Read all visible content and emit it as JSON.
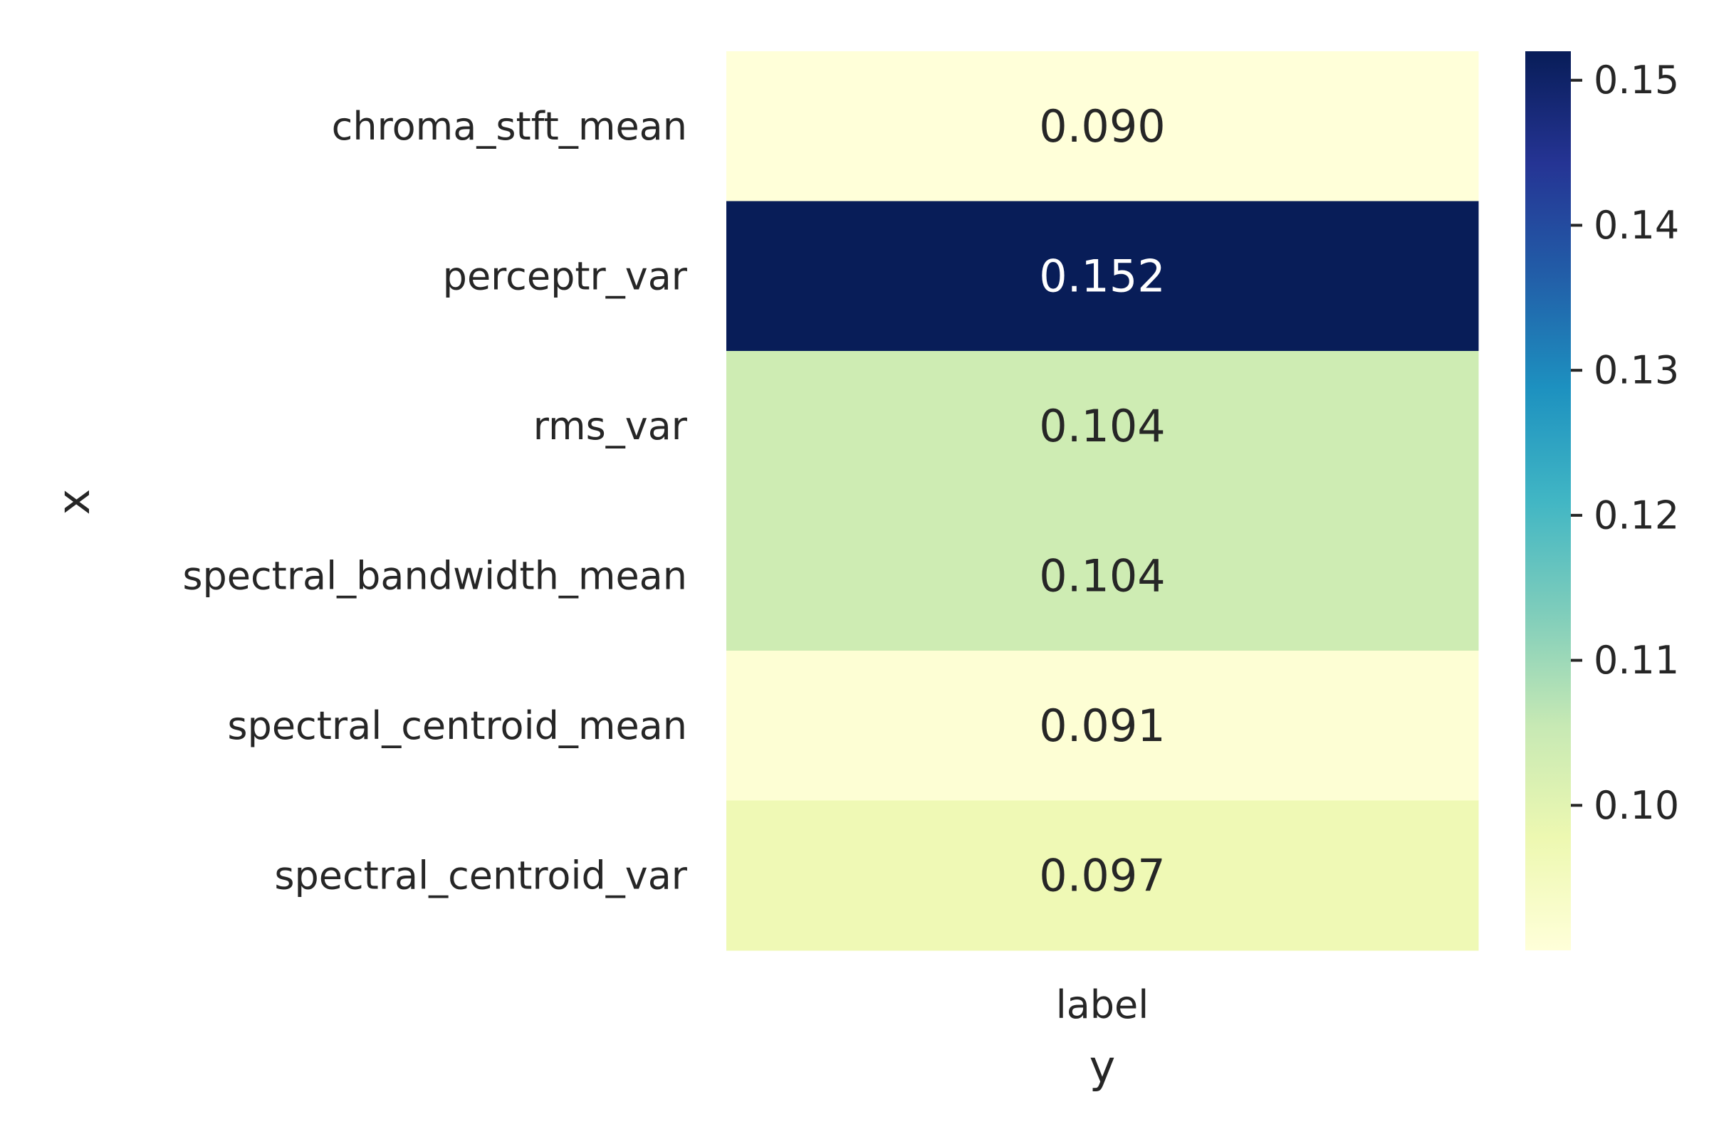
{
  "chart_data": {
    "type": "heatmap",
    "rows": [
      "chroma_stft_mean",
      "perceptr_var",
      "rms_var",
      "spectral_bandwidth_mean",
      "spectral_centroid_mean",
      "spectral_centroid_var"
    ],
    "columns": [
      "label"
    ],
    "values": [
      [
        0.09
      ],
      [
        0.152
      ],
      [
        0.104
      ],
      [
        0.104
      ],
      [
        0.091
      ],
      [
        0.097
      ]
    ],
    "cell_labels": [
      "0.090",
      "0.152",
      "0.104",
      "0.104",
      "0.091",
      "0.097"
    ],
    "xlabel": "y",
    "ylabel": "x",
    "colormap": "YlGnBu",
    "colorbar": {
      "range": [
        0.09,
        0.152
      ],
      "ticks": [
        0.1,
        0.11,
        0.12,
        0.13,
        0.14,
        0.15
      ],
      "tick_labels": [
        "0.10",
        "0.11",
        "0.12",
        "0.13",
        "0.14",
        "0.15"
      ]
    },
    "grid": false
  }
}
